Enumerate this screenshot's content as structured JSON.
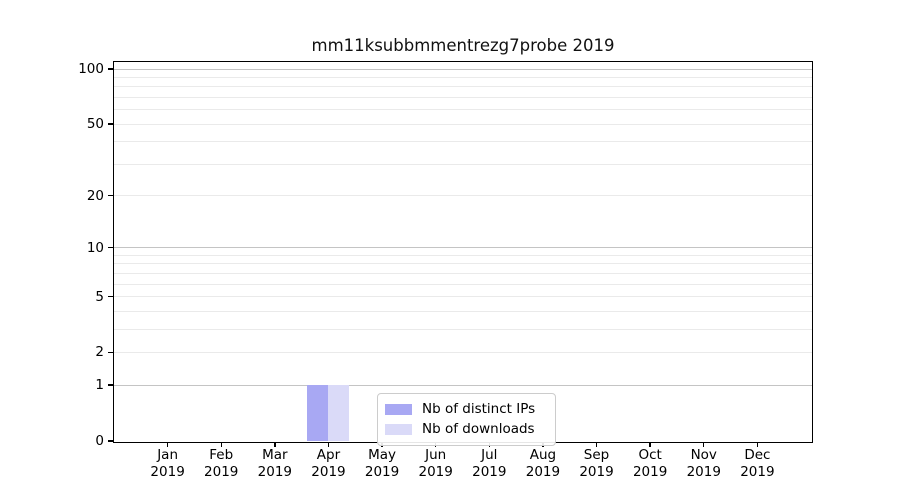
{
  "chart_data": {
    "type": "bar",
    "title": "mm11ksubbmmentrezg7probe 2019",
    "categories": [
      "Jan",
      "Feb",
      "Mar",
      "Apr",
      "May",
      "Jun",
      "Jul",
      "Aug",
      "Sep",
      "Oct",
      "Nov",
      "Dec"
    ],
    "year_label": "2019",
    "series": [
      {
        "name": "Nb of distinct IPs",
        "color": "#a8a8f3",
        "values": [
          0,
          0,
          0,
          1,
          0,
          0,
          0,
          0,
          0,
          0,
          0,
          0
        ]
      },
      {
        "name": "Nb of downloads",
        "color": "#dadaf8",
        "values": [
          0,
          0,
          0,
          1,
          0,
          0,
          0,
          0,
          0,
          0,
          0,
          0
        ]
      }
    ],
    "yscale": "log1p",
    "ylim": [
      0,
      112
    ],
    "yticks": [
      0,
      1,
      2,
      5,
      10,
      20,
      50,
      100
    ],
    "yticks_minor": [
      3,
      4,
      6,
      7,
      8,
      9,
      30,
      40,
      60,
      70,
      80,
      90
    ],
    "decade_ticks": [
      1,
      10,
      100
    ],
    "grid": "horizontal",
    "legend_position": "lower center",
    "colors": {
      "grid_decade": "#c4c4c4",
      "grid_light": "#eaeaea",
      "spine": "#000000",
      "text": "#000000",
      "background": "#ffffff"
    }
  }
}
